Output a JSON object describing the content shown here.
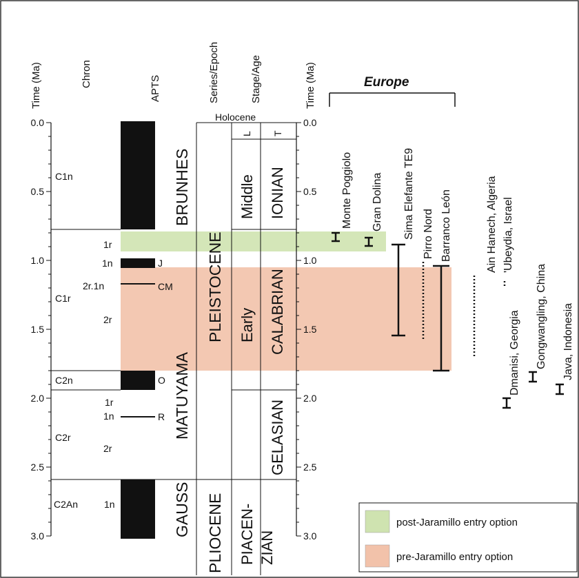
{
  "headers": {
    "time_left": "Time (Ma)",
    "chron": "Chron",
    "apts": "APTS",
    "series": "Series/Epoch",
    "stage": "Stage/Age",
    "time_right": "Time (Ma)"
  },
  "axis_ticks": [
    "0.0",
    "0.5",
    "1.0",
    "1.5",
    "2.0",
    "2.5",
    "3.0"
  ],
  "chron": {
    "c1n": "C1n",
    "c1r": "C1r",
    "c2n": "C2n",
    "c2r": "C2r",
    "c2an": "C2An",
    "sub_1r_a": "1r",
    "sub_1n_a": "1n",
    "sub_2r1n": "2r.1n",
    "sub_2r_a": "2r",
    "sub_1r_b": "1r",
    "sub_1n_b": "1n",
    "sub_2r_b": "2r",
    "sub_1n_c": "1n"
  },
  "events": {
    "j": "J",
    "cm": "CM",
    "o": "O",
    "r": "R"
  },
  "polarity": {
    "brunhes": "BRUNHES",
    "matuyama": "MATUYAMA",
    "gauss": "GAUSS"
  },
  "epochs": {
    "holocene": "Holocene",
    "pleistocene": "PLEISTOCENE",
    "pliocene": "PLIOCENE"
  },
  "subseries": {
    "l": "L",
    "middle": "Middle",
    "early": "Early",
    "piacen": "PIACEN-",
    "zian": "ZIAN"
  },
  "stages": {
    "t": "T",
    "ionian": "IONIAN",
    "calabrian": "CALABRIAN",
    "gelasian": "GELASIAN"
  },
  "europe": {
    "title": "Europe"
  },
  "sites": {
    "monte_poggiolo": "Monte Poggiolo",
    "gran_dolina": "Gran Dolina",
    "sima_elefante": "Sima Elefante TE9",
    "pirro_nord": "Pirro Nord",
    "barranco_leon": "Barranco León",
    "ain_hanech": "Ain Hanech, Algeria",
    "ubeydia": "'Ubeydia, Israel",
    "dmanisi": "Dmanisi, Georgia",
    "gongwangling": "Gongwangling, China",
    "java": "Java, Indonesia"
  },
  "legend": {
    "post": "post-Jaramillo entry option",
    "pre": "pre-Jaramillo entry option",
    "post_color": "#cfe3b0",
    "pre_color": "#f2c2aa"
  }
}
